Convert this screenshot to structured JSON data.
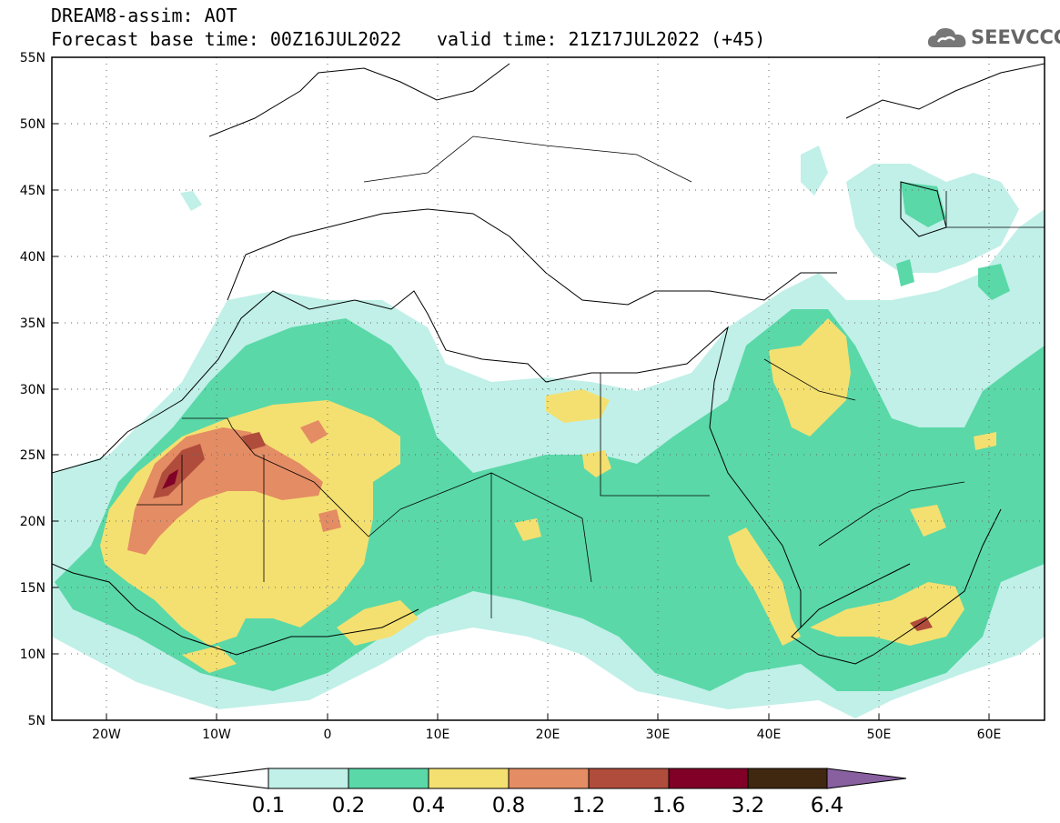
{
  "title": {
    "line1": "DREAM8-assim: AOT",
    "line2": "Forecast base time: 00Z16JUL2022",
    "valid": "valid time: 21Z17JUL2022 (+45)"
  },
  "logo": {
    "text": "SEEVCCC",
    "icon": "cloud-icon",
    "color": "#666666"
  },
  "axes": {
    "lon_ticks": [
      "20W",
      "10W",
      "0",
      "10E",
      "20E",
      "30E",
      "40E",
      "50E",
      "60E"
    ],
    "lat_ticks": [
      "55N",
      "50N",
      "45N",
      "40N",
      "35N",
      "30N",
      "25N",
      "20N",
      "15N",
      "10N",
      "5N"
    ],
    "lon_range": [
      -25,
      65
    ],
    "lat_range": [
      5,
      55
    ],
    "grid": "dotted"
  },
  "colorbar": {
    "levels": [
      "0.1",
      "0.2",
      "0.4",
      "0.8",
      "1.2",
      "1.6",
      "3.2",
      "6.4"
    ],
    "colors": [
      "#c0f0e8",
      "#5ad8a8",
      "#f4e070",
      "#e48c64",
      "#b04c3c",
      "#800028",
      "#402810",
      "#8860a0"
    ],
    "under_color": "#ffffff"
  },
  "map_colors": {
    "c1": "#c0f0e8",
    "c2": "#5ad8a8",
    "c3": "#f4e070",
    "c4": "#e48c64",
    "c5": "#b04c3c",
    "c6": "#800028"
  }
}
